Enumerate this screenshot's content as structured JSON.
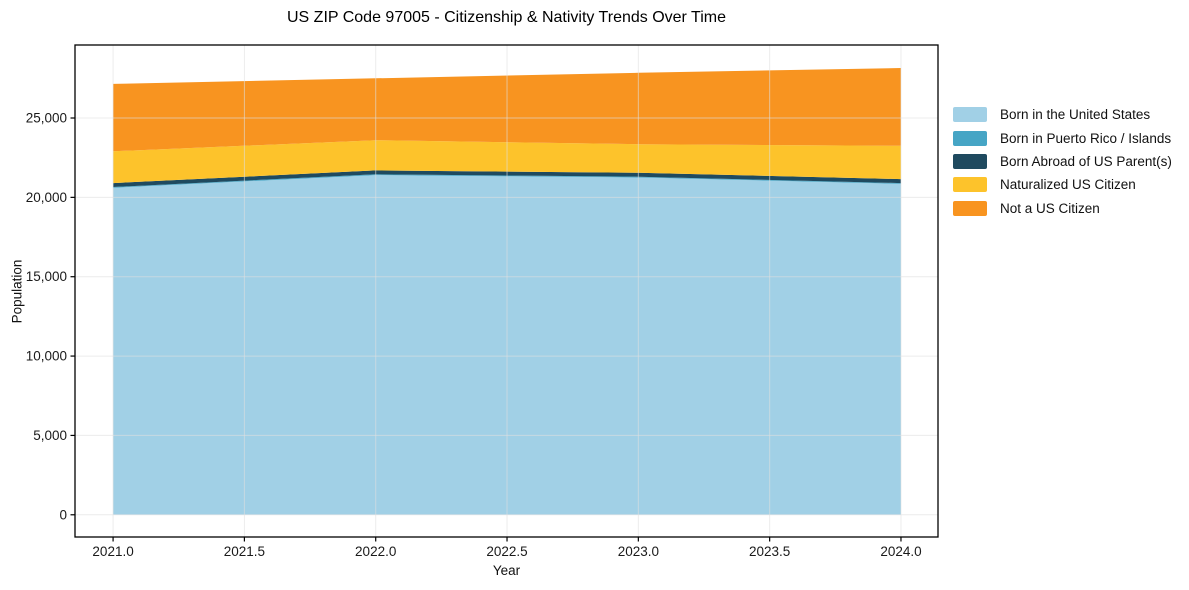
{
  "figure": {
    "background": "#ffffff"
  },
  "chart_data": {
    "type": "area",
    "stacked": true,
    "title": "US ZIP Code 97005 - Citizenship & Nativity Trends Over Time",
    "xlabel": "Year",
    "ylabel": "Population",
    "x": [
      2021,
      2022,
      2023,
      2024
    ],
    "series": [
      {
        "name": "Born in the United States",
        "color": "#a1d0e6",
        "values": [
          20600,
          21400,
          21250,
          20850
        ]
      },
      {
        "name": "Born in Puerto Rico / Islands",
        "color": "#46a5c5",
        "values": [
          50,
          50,
          50,
          50
        ]
      },
      {
        "name": "Born Abroad of US Parent(s)",
        "color": "#1f4a5f",
        "values": [
          250,
          250,
          250,
          250
        ]
      },
      {
        "name": "Naturalized US Citizen",
        "color": "#fdc32b",
        "values": [
          2000,
          1900,
          1800,
          2100
        ]
      },
      {
        "name": "Not a US Citizen",
        "color": "#f89420",
        "values": [
          4250,
          3900,
          4500,
          4900
        ]
      }
    ],
    "stack_totals": [
      27150,
      27500,
      27850,
      28150
    ],
    "xlim": [
      2020.855,
      2024.141
    ],
    "ylim": [
      -1400,
      29600
    ],
    "xticks": {
      "values": [
        2021.0,
        2021.5,
        2022.0,
        2022.5,
        2023.0,
        2023.5,
        2024.0
      ],
      "labels": [
        "2021.0",
        "2021.5",
        "2022.0",
        "2022.5",
        "2023.0",
        "2023.5",
        "2024.0"
      ]
    },
    "yticks": {
      "values": [
        0,
        5000,
        10000,
        15000,
        20000,
        25000
      ],
      "labels": [
        "0",
        "5,000",
        "10,000",
        "15,000",
        "20,000",
        "25,000"
      ]
    },
    "grid": true,
    "grid_color": "#e0e0e0",
    "frame_color": "#000000",
    "tick_label_color": "#1a1a1a",
    "legend_position": "right-outside"
  }
}
